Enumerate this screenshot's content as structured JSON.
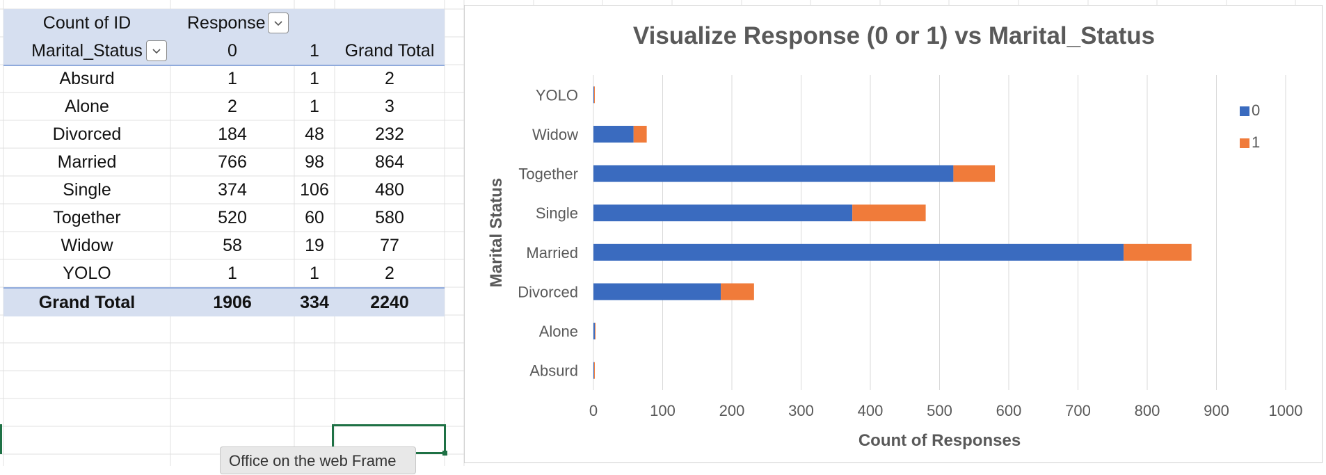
{
  "pivot": {
    "corner_label": "Count of ID",
    "column_field_label": "Response",
    "row_field_label": "Marital_Status",
    "column_headers": [
      "0",
      "1",
      "Grand Total"
    ],
    "rows": [
      {
        "label": "Absurd",
        "v0": "1",
        "v1": "1",
        "total": "2"
      },
      {
        "label": "Alone",
        "v0": "2",
        "v1": "1",
        "total": "3"
      },
      {
        "label": "Divorced",
        "v0": "184",
        "v1": "48",
        "total": "232"
      },
      {
        "label": "Married",
        "v0": "766",
        "v1": "98",
        "total": "864"
      },
      {
        "label": "Single",
        "v0": "374",
        "v1": "106",
        "total": "480"
      },
      {
        "label": "Together",
        "v0": "520",
        "v1": "60",
        "total": "580"
      },
      {
        "label": "Widow",
        "v0": "58",
        "v1": "19",
        "total": "77"
      },
      {
        "label": "YOLO",
        "v0": "1",
        "v1": "1",
        "total": "2"
      }
    ],
    "grand_total": {
      "label": "Grand Total",
      "v0": "1906",
      "v1": "334",
      "total": "2240"
    }
  },
  "tooltip": "Office on the web Frame",
  "colors": {
    "series_0": "#3a6bbf",
    "series_1": "#f07b3a",
    "pivot_header": "#d6dff0",
    "selection": "#1e7145"
  },
  "chart_data": {
    "type": "bar",
    "orientation": "horizontal",
    "stacked": true,
    "title": "Visualize Response (0 or 1) vs Marital_Status",
    "xlabel": "Count of Responses",
    "ylabel": "Marital Status",
    "categories": [
      "Absurd",
      "Alone",
      "Divorced",
      "Married",
      "Single",
      "Together",
      "Widow",
      "YOLO"
    ],
    "series": [
      {
        "name": "0",
        "values": [
          1,
          2,
          184,
          766,
          374,
          520,
          58,
          1
        ]
      },
      {
        "name": "1",
        "values": [
          1,
          1,
          48,
          98,
          106,
          60,
          19,
          1
        ]
      }
    ],
    "xlim": [
      0,
      1000
    ],
    "xticks": [
      0,
      100,
      200,
      300,
      400,
      500,
      600,
      700,
      800,
      900,
      1000
    ],
    "grid": "vertical",
    "legend": "right"
  }
}
